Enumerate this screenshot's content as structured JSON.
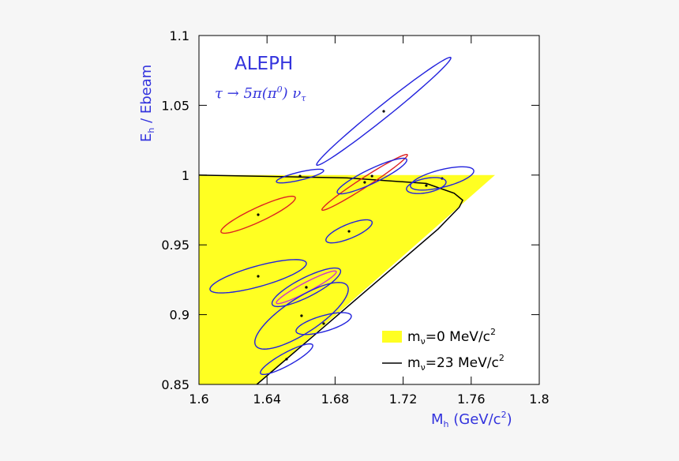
{
  "chart_data": {
    "type": "error_ellipse",
    "title": "ALEPH",
    "annotation": [
      "τ → 5π(π",
      "0",
      ") ν",
      "τ"
    ],
    "xlabel": [
      "M",
      "h",
      " (GeV/c",
      "2",
      ")"
    ],
    "ylabel": [
      "E",
      "h",
      " / Ebeam"
    ],
    "xlim": [
      1.6,
      1.8
    ],
    "ylim": [
      0.85,
      1.1
    ],
    "xticks": [
      1.6,
      1.64,
      1.68,
      1.72,
      1.76,
      1.8
    ],
    "yticks": [
      0.85,
      0.9,
      0.95,
      1,
      1.05,
      1.1
    ],
    "regions": [
      {
        "name": [
          "m",
          "ν",
          "=0 MeV/c",
          "2"
        ],
        "color": "#ffff22",
        "x": [
          1.6,
          1.774,
          1.634,
          1.6
        ],
        "y": [
          1.0,
          1.0,
          0.85,
          0.85
        ]
      }
    ],
    "lines": [
      {
        "name": [
          "m",
          "ν",
          "=23 MeV/c",
          "2"
        ],
        "color": "#000000",
        "x": [
          1.6,
          1.687,
          1.7336,
          1.75,
          1.755,
          1.753,
          1.7406,
          1.634
        ],
        "y": [
          1.0,
          0.998,
          0.994,
          0.987,
          0.982,
          0.977,
          0.9614,
          0.85
        ]
      }
    ],
    "ellipses": [
      {
        "color": "#2222dd",
        "x": 1.7086,
        "y": 1.0457,
        "u": [
          0.0394,
          0.0385
        ],
        "v": [
          0.0023,
          -0.0035
        ]
      },
      {
        "color": "#2222dd",
        "x": 1.6594,
        "y": 0.9993,
        "u": [
          0.0139,
          0.004
        ],
        "v": [
          0.0005,
          -0.0028
        ]
      },
      {
        "color": "#dd2222",
        "x": 1.6974,
        "y": 0.9948,
        "u": [
          0.0251,
          0.0198
        ],
        "v": [
          0.0015,
          -0.0028
        ]
      },
      {
        "color": "#2222dd",
        "x": 1.7017,
        "y": 0.9993,
        "u": [
          0.0204,
          0.0119
        ],
        "v": [
          0.0018,
          -0.0046
        ]
      },
      {
        "color": "#2222dd",
        "x": 1.7429,
        "y": 0.9976,
        "u": [
          0.0186,
          0.0057
        ],
        "v": [
          0.0012,
          -0.0061
        ]
      },
      {
        "color": "#2222dd",
        "x": 1.7336,
        "y": 0.9925,
        "u": [
          0.0116,
          0.0028
        ],
        "v": [
          0.0008,
          -0.005
        ]
      },
      {
        "color": "#dd2222",
        "x": 1.6348,
        "y": 0.9716,
        "u": [
          0.0218,
          0.0124
        ],
        "v": [
          0.0018,
          -0.0046
        ]
      },
      {
        "color": "#2222dd",
        "x": 1.6882,
        "y": 0.9597,
        "u": [
          0.0135,
          0.0068
        ],
        "v": [
          0.0016,
          -0.0047
        ]
      },
      {
        "color": "#2222dd",
        "x": 1.6348,
        "y": 0.9275,
        "u": [
          0.0283,
          0.0096
        ],
        "v": [
          0.0016,
          -0.0071
        ]
      },
      {
        "color": "#2222dd",
        "x": 1.6631,
        "y": 0.9196,
        "u": [
          0.02,
          0.0124
        ],
        "v": [
          0.0026,
          -0.0061
        ]
      },
      {
        "color": "#cc33cc",
        "x": 1.6631,
        "y": 0.9196,
        "u": [
          0.0176,
          0.0113
        ],
        "v": [
          0.0013,
          -0.003
        ]
      },
      {
        "color": "#2222dd",
        "x": 1.6603,
        "y": 0.8992,
        "u": [
          0.0269,
          0.0215
        ],
        "v": [
          0.0056,
          -0.0104
        ]
      },
      {
        "color": "#2222dd",
        "x": 1.6733,
        "y": 0.8936,
        "u": [
          0.0162,
          0.0057
        ],
        "v": [
          0.0013,
          -0.0054
        ]
      },
      {
        "color": "#2222dd",
        "x": 1.6515,
        "y": 0.8681,
        "u": [
          0.0153,
          0.0102
        ],
        "v": [
          0.0018,
          -0.004
        ]
      }
    ]
  }
}
